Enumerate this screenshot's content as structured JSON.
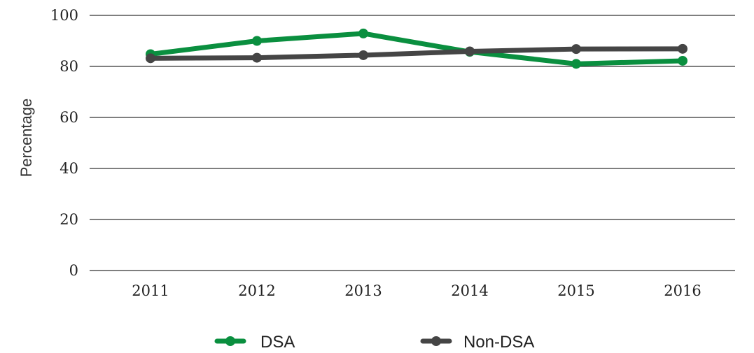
{
  "chart_data": {
    "type": "line",
    "title": "",
    "xlabel": "",
    "ylabel": "Percentage",
    "categories": [
      "2011",
      "2012",
      "2013",
      "2014",
      "2015",
      "2016"
    ],
    "ylim": [
      0,
      100
    ],
    "yticks": [
      "0",
      "20",
      "40",
      "60",
      "80",
      "100"
    ],
    "grid": true,
    "legend": "bottom",
    "series": [
      {
        "name": "DSA",
        "color": "#0a8f3f",
        "values": [
          84.8,
          90.0,
          92.9,
          85.7,
          81.0,
          82.2
        ]
      },
      {
        "name": "Non-DSA",
        "color": "#454545",
        "values": [
          83.2,
          83.4,
          84.4,
          85.9,
          86.8,
          86.9
        ]
      }
    ]
  }
}
